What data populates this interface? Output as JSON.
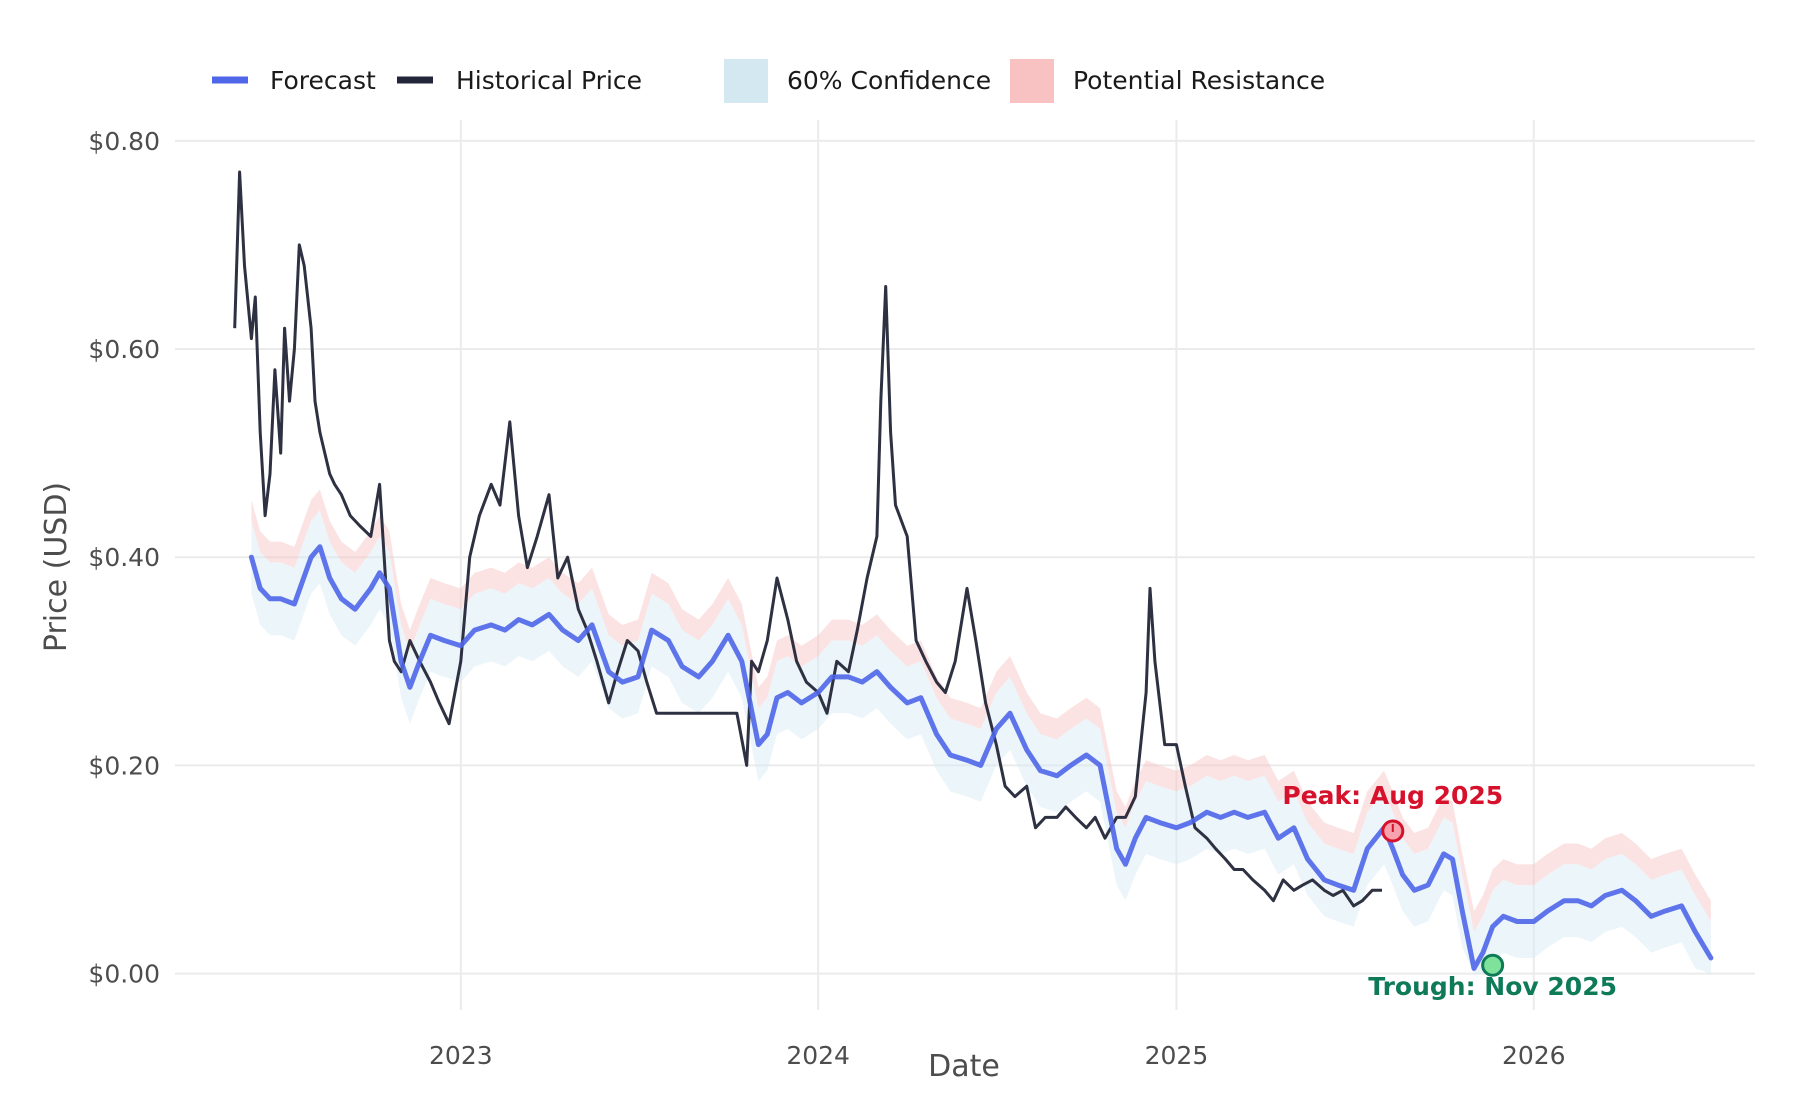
{
  "chart_data": {
    "type": "line",
    "title": "",
    "xlabel": "Date",
    "ylabel": "Price (USD)",
    "xlim": [
      "2022-03-15",
      "2026-08-15"
    ],
    "ylim": [
      -0.035,
      0.82
    ],
    "grid": true,
    "legend_position": "top-left",
    "x_ticks": [
      {
        "date": "2023-01-01",
        "label": "2023"
      },
      {
        "date": "2024-01-01",
        "label": "2024"
      },
      {
        "date": "2025-01-01",
        "label": "2025"
      },
      {
        "date": "2026-01-01",
        "label": "2026"
      }
    ],
    "y_ticks": [
      {
        "value": 0.0,
        "label": "$0.00"
      },
      {
        "value": 0.2,
        "label": "$0.20"
      },
      {
        "value": 0.4,
        "label": "$0.40"
      },
      {
        "value": 0.6,
        "label": "$0.60"
      },
      {
        "value": 0.8,
        "label": "$0.80"
      }
    ],
    "legend": {
      "forecast": "Forecast",
      "historical": "Historical Price",
      "confidence": "60% Confidence",
      "resistance": "Potential Resistance"
    },
    "colors": {
      "forecast": "#4f66e8",
      "historical": "#232638",
      "confidence": "#d4e8f2",
      "resistance": "#f9c2c2",
      "peak": "#d6112c",
      "trough": "#0e7a57"
    },
    "historical": {
      "name": "Historical Price",
      "x": [
        "2022-05-15",
        "2022-05-20",
        "2022-05-25",
        "2022-06-01",
        "2022-06-05",
        "2022-06-10",
        "2022-06-15",
        "2022-06-20",
        "2022-06-25",
        "2022-07-01",
        "2022-07-05",
        "2022-07-10",
        "2022-07-15",
        "2022-07-20",
        "2022-07-25",
        "2022-08-01",
        "2022-08-05",
        "2022-08-10",
        "2022-08-15",
        "2022-08-20",
        "2022-08-25",
        "2022-09-01",
        "2022-09-10",
        "2022-09-20",
        "2022-10-01",
        "2022-10-10",
        "2022-10-20",
        "2022-10-25",
        "2022-11-01",
        "2022-11-10",
        "2022-11-20",
        "2022-12-01",
        "2022-12-10",
        "2022-12-20",
        "2023-01-01",
        "2023-01-10",
        "2023-01-20",
        "2023-02-01",
        "2023-02-10",
        "2023-02-20",
        "2023-03-01",
        "2023-03-10",
        "2023-03-20",
        "2023-04-01",
        "2023-04-10",
        "2023-04-20",
        "2023-05-01",
        "2023-05-10",
        "2023-05-20",
        "2023-06-01",
        "2023-06-10",
        "2023-06-20",
        "2023-07-01",
        "2023-07-10",
        "2023-07-20",
        "2023-08-01",
        "2023-08-10",
        "2023-08-20",
        "2023-09-01",
        "2023-09-10",
        "2023-09-20",
        "2023-10-01",
        "2023-10-10",
        "2023-10-20",
        "2023-10-25",
        "2023-11-01",
        "2023-11-10",
        "2023-11-20",
        "2023-12-01",
        "2023-12-10",
        "2023-12-20",
        "2024-01-01",
        "2024-01-10",
        "2024-01-20",
        "2024-02-01",
        "2024-02-10",
        "2024-02-20",
        "2024-03-01",
        "2024-03-05",
        "2024-03-10",
        "2024-03-15",
        "2024-03-20",
        "2024-04-01",
        "2024-04-10",
        "2024-04-20",
        "2024-05-01",
        "2024-05-10",
        "2024-05-20",
        "2024-06-01",
        "2024-06-10",
        "2024-06-20",
        "2024-07-01",
        "2024-07-10",
        "2024-07-20",
        "2024-08-01",
        "2024-08-10",
        "2024-08-20",
        "2024-09-01",
        "2024-09-10",
        "2024-09-20",
        "2024-10-01",
        "2024-10-10",
        "2024-10-20",
        "2024-11-01",
        "2024-11-10",
        "2024-11-20",
        "2024-12-01",
        "2024-12-05",
        "2024-12-10",
        "2024-12-20",
        "2025-01-01",
        "2025-01-10",
        "2025-01-20",
        "2025-02-01",
        "2025-02-10",
        "2025-02-20",
        "2025-03-01",
        "2025-03-10",
        "2025-03-20",
        "2025-04-01",
        "2025-04-10",
        "2025-04-20",
        "2025-05-01",
        "2025-05-10",
        "2025-05-20",
        "2025-06-01",
        "2025-06-10",
        "2025-06-20",
        "2025-07-01",
        "2025-07-10",
        "2025-07-20",
        "2025-07-30"
      ],
      "y": [
        0.62,
        0.77,
        0.68,
        0.61,
        0.65,
        0.52,
        0.44,
        0.48,
        0.58,
        0.5,
        0.62,
        0.55,
        0.6,
        0.7,
        0.68,
        0.62,
        0.55,
        0.52,
        0.5,
        0.48,
        0.47,
        0.46,
        0.44,
        0.43,
        0.42,
        0.47,
        0.32,
        0.3,
        0.29,
        0.32,
        0.3,
        0.28,
        0.26,
        0.24,
        0.3,
        0.4,
        0.44,
        0.47,
        0.45,
        0.53,
        0.44,
        0.39,
        0.42,
        0.46,
        0.38,
        0.4,
        0.35,
        0.33,
        0.3,
        0.26,
        0.29,
        0.32,
        0.31,
        0.28,
        0.25,
        0.25,
        0.25,
        0.25,
        0.25,
        0.25,
        0.25,
        0.25,
        0.25,
        0.2,
        0.3,
        0.29,
        0.32,
        0.38,
        0.34,
        0.3,
        0.28,
        0.27,
        0.25,
        0.3,
        0.29,
        0.33,
        0.38,
        0.42,
        0.55,
        0.66,
        0.52,
        0.45,
        0.42,
        0.32,
        0.3,
        0.28,
        0.27,
        0.3,
        0.37,
        0.32,
        0.26,
        0.22,
        0.18,
        0.17,
        0.18,
        0.14,
        0.15,
        0.15,
        0.16,
        0.15,
        0.14,
        0.15,
        0.13,
        0.15,
        0.15,
        0.17,
        0.27,
        0.37,
        0.3,
        0.22,
        0.22,
        0.18,
        0.14,
        0.13,
        0.12,
        0.11,
        0.1,
        0.1,
        0.09,
        0.08,
        0.07,
        0.09,
        0.08,
        0.085,
        0.09,
        0.08,
        0.075,
        0.08,
        0.065,
        0.07,
        0.08,
        0.08
      ]
    },
    "forecast": {
      "name": "Forecast",
      "x": [
        "2022-06-01",
        "2022-06-10",
        "2022-06-20",
        "2022-07-01",
        "2022-07-15",
        "2022-08-01",
        "2022-08-10",
        "2022-08-20",
        "2022-09-01",
        "2022-09-15",
        "2022-10-01",
        "2022-10-10",
        "2022-10-20",
        "2022-11-01",
        "2022-11-10",
        "2022-11-20",
        "2022-12-01",
        "2022-12-15",
        "2023-01-01",
        "2023-01-15",
        "2023-02-01",
        "2023-02-15",
        "2023-03-01",
        "2023-03-15",
        "2023-04-01",
        "2023-04-15",
        "2023-05-01",
        "2023-05-15",
        "2023-06-01",
        "2023-06-15",
        "2023-07-01",
        "2023-07-15",
        "2023-08-01",
        "2023-08-15",
        "2023-09-01",
        "2023-09-15",
        "2023-10-01",
        "2023-10-15",
        "2023-11-01",
        "2023-11-10",
        "2023-11-20",
        "2023-12-01",
        "2023-12-15",
        "2024-01-01",
        "2024-01-15",
        "2024-02-01",
        "2024-02-15",
        "2024-03-01",
        "2024-03-15",
        "2024-04-01",
        "2024-04-15",
        "2024-05-01",
        "2024-05-15",
        "2024-06-01",
        "2024-06-15",
        "2024-07-01",
        "2024-07-15",
        "2024-08-01",
        "2024-08-15",
        "2024-09-01",
        "2024-09-15",
        "2024-10-01",
        "2024-10-15",
        "2024-11-01",
        "2024-11-10",
        "2024-11-20",
        "2024-12-01",
        "2024-12-15",
        "2025-01-01",
        "2025-01-15",
        "2025-02-01",
        "2025-02-15",
        "2025-03-01",
        "2025-03-15",
        "2025-04-01",
        "2025-04-15",
        "2025-05-01",
        "2025-05-15",
        "2025-06-01",
        "2025-06-15",
        "2025-07-01",
        "2025-07-15",
        "2025-08-01",
        "2025-08-10",
        "2025-08-20",
        "2025-09-01",
        "2025-09-15",
        "2025-10-01",
        "2025-10-10",
        "2025-10-20",
        "2025-11-01",
        "2025-11-10",
        "2025-11-20",
        "2025-12-01",
        "2025-12-15",
        "2026-01-01",
        "2026-01-15",
        "2026-02-01",
        "2026-02-15",
        "2026-03-01",
        "2026-03-15",
        "2026-04-01",
        "2026-04-15",
        "2026-05-01",
        "2026-05-15",
        "2026-06-01",
        "2026-06-15",
        "2026-07-01"
      ],
      "y": [
        0.4,
        0.37,
        0.36,
        0.36,
        0.355,
        0.4,
        0.41,
        0.38,
        0.36,
        0.35,
        0.37,
        0.385,
        0.37,
        0.3,
        0.275,
        0.3,
        0.325,
        0.32,
        0.315,
        0.33,
        0.335,
        0.33,
        0.34,
        0.335,
        0.345,
        0.33,
        0.32,
        0.335,
        0.29,
        0.28,
        0.285,
        0.33,
        0.32,
        0.295,
        0.285,
        0.3,
        0.325,
        0.3,
        0.22,
        0.23,
        0.265,
        0.27,
        0.26,
        0.27,
        0.285,
        0.285,
        0.28,
        0.29,
        0.275,
        0.26,
        0.265,
        0.23,
        0.21,
        0.205,
        0.2,
        0.235,
        0.25,
        0.215,
        0.195,
        0.19,
        0.2,
        0.21,
        0.2,
        0.12,
        0.105,
        0.13,
        0.15,
        0.145,
        0.14,
        0.145,
        0.155,
        0.15,
        0.155,
        0.15,
        0.155,
        0.13,
        0.14,
        0.11,
        0.09,
        0.085,
        0.08,
        0.12,
        0.14,
        0.12,
        0.095,
        0.08,
        0.085,
        0.115,
        0.11,
        0.06,
        0.005,
        0.02,
        0.045,
        0.055,
        0.05,
        0.05,
        0.06,
        0.07,
        0.07,
        0.065,
        0.075,
        0.08,
        0.07,
        0.055,
        0.06,
        0.065,
        0.04,
        0.015
      ]
    },
    "confidence_band": {
      "name": "60% Confidence",
      "low_offset": -0.035,
      "high_offset": 0.035
    },
    "resistance_band": {
      "name": "Potential Resistance",
      "low_offset": 0.035,
      "high_offset": 0.055
    },
    "annotations": [
      {
        "type": "peak",
        "label": "Peak: Aug 2025",
        "x": "2025-08-10",
        "y": 0.137
      },
      {
        "type": "trough",
        "label": "Trough: Nov 2025",
        "x": "2025-11-20",
        "y": 0.008
      }
    ]
  }
}
